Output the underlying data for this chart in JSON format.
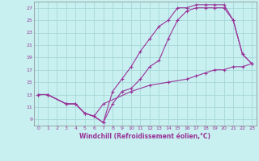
{
  "xlabel": "Windchill (Refroidissement éolien,°C)",
  "bg_color": "#c8f0f0",
  "grid_color": "#a8d8d8",
  "line_color": "#993399",
  "line1_x": [
    0,
    1,
    3,
    4,
    5,
    6,
    7,
    8,
    9,
    10,
    11,
    12,
    13,
    14,
    15,
    16,
    17,
    18,
    19,
    20,
    21,
    22,
    23
  ],
  "line1_y": [
    13.0,
    13.0,
    11.5,
    11.5,
    10.0,
    9.5,
    8.5,
    11.5,
    13.5,
    14.0,
    15.5,
    17.5,
    18.5,
    22.0,
    25.0,
    26.5,
    27.0,
    27.0,
    27.0,
    27.0,
    25.0,
    19.5,
    18.0
  ],
  "line2_x": [
    0,
    1,
    3,
    4,
    5,
    6,
    7,
    8,
    9,
    10,
    11,
    12,
    13,
    14,
    15,
    16,
    17,
    18,
    19,
    20,
    21,
    22,
    23
  ],
  "line2_y": [
    13.0,
    13.0,
    11.5,
    11.5,
    10.0,
    9.5,
    8.5,
    13.5,
    15.5,
    17.5,
    20.0,
    22.0,
    24.0,
    25.0,
    27.0,
    27.0,
    27.5,
    27.5,
    27.5,
    27.5,
    25.0,
    19.5,
    18.0
  ],
  "line3_x": [
    0,
    1,
    3,
    4,
    5,
    6,
    7,
    10,
    12,
    14,
    16,
    17,
    18,
    19,
    20,
    21,
    22,
    23
  ],
  "line3_y": [
    13.0,
    13.0,
    11.5,
    11.5,
    10.0,
    9.5,
    11.5,
    13.5,
    14.5,
    15.0,
    15.5,
    16.0,
    16.5,
    17.0,
    17.0,
    17.5,
    17.5,
    18.0
  ],
  "xlim": [
    -0.5,
    23.5
  ],
  "ylim": [
    8.0,
    28.0
  ],
  "xticks": [
    0,
    1,
    2,
    3,
    4,
    5,
    6,
    7,
    8,
    9,
    10,
    11,
    12,
    13,
    14,
    15,
    16,
    17,
    18,
    19,
    20,
    21,
    22,
    23
  ],
  "yticks": [
    9,
    11,
    13,
    15,
    17,
    19,
    21,
    23,
    25,
    27
  ]
}
